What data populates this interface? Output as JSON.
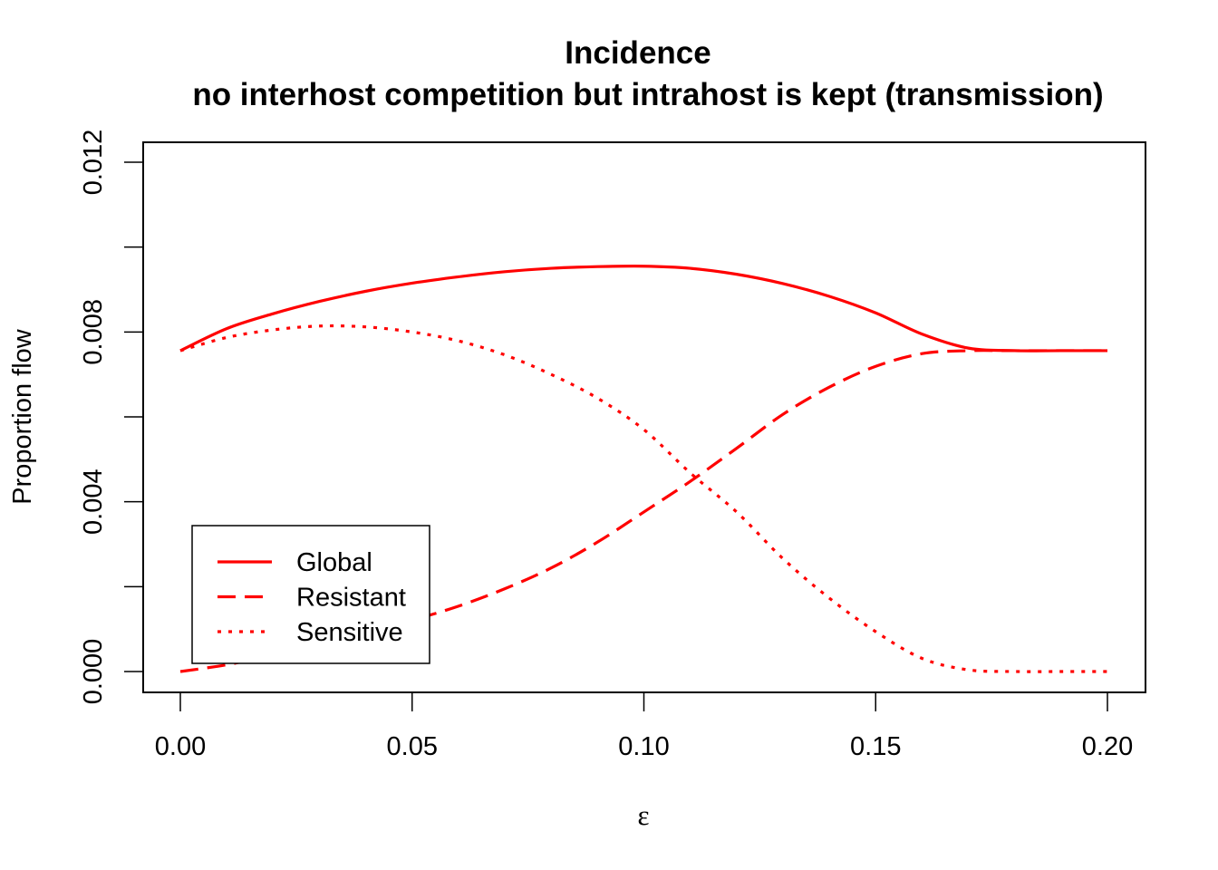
{
  "chart_data": {
    "type": "line",
    "title": "Incidence",
    "subtitle": "no interhost competition but intrahost is kept (transmission)",
    "xlabel": "ε",
    "ylabel": "Proportion flow",
    "xlim": [
      0.0,
      0.2
    ],
    "ylim": [
      0.0,
      0.012
    ],
    "x_ticks": [
      "0.00",
      "0.05",
      "0.10",
      "0.15",
      "0.20"
    ],
    "y_ticks": [
      "0.000",
      "0.004",
      "0.008",
      "0.012"
    ],
    "grid": false,
    "legend_position": "bottom-left",
    "color": "#ff0000",
    "x": [
      0.0,
      0.01,
      0.02,
      0.03,
      0.04,
      0.05,
      0.06,
      0.07,
      0.08,
      0.09,
      0.1,
      0.11,
      0.12,
      0.13,
      0.14,
      0.15,
      0.16,
      0.17,
      0.18,
      0.19,
      0.2
    ],
    "series": [
      {
        "name": "Global",
        "dash": "solid",
        "values": [
          0.00756,
          0.00808,
          0.00843,
          0.00872,
          0.00896,
          0.00915,
          0.0093,
          0.00942,
          0.0095,
          0.00954,
          0.00955,
          0.0095,
          0.00936,
          0.00914,
          0.00884,
          0.00845,
          0.00795,
          0.00762,
          0.00756,
          0.00756,
          0.00756
        ]
      },
      {
        "name": "Resistant",
        "dash": "dashed",
        "values": [
          0.0,
          0.00016,
          0.00039,
          0.00066,
          0.00093,
          0.00121,
          0.00154,
          0.00195,
          0.00244,
          0.00305,
          0.00376,
          0.00448,
          0.00526,
          0.00606,
          0.0067,
          0.00719,
          0.00749,
          0.00756,
          0.00756,
          0.00756,
          0.00756
        ]
      },
      {
        "name": "Sensitive",
        "dash": "dotted",
        "values": [
          0.00756,
          0.00787,
          0.00805,
          0.00814,
          0.00812,
          0.008,
          0.00779,
          0.00746,
          0.007,
          0.00644,
          0.0057,
          0.00468,
          0.00376,
          0.00266,
          0.00173,
          0.00094,
          0.00031,
          4e-05,
          0.0,
          0.0,
          0.0
        ]
      }
    ]
  }
}
